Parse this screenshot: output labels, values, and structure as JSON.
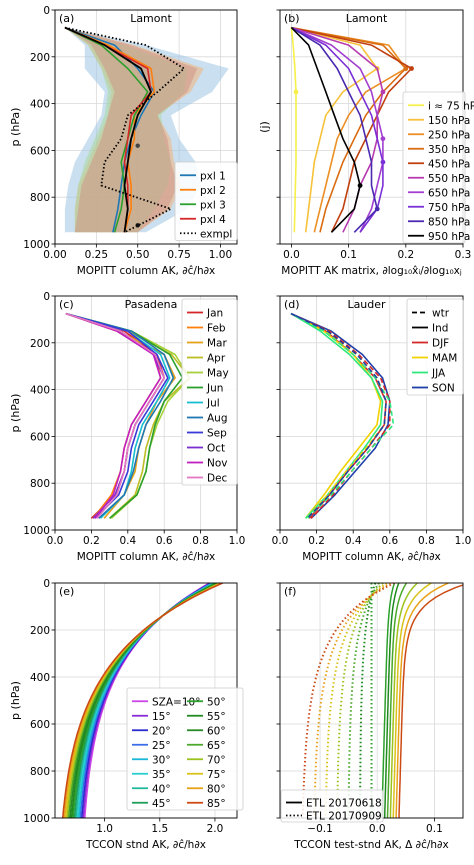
{
  "chart_data": [
    {
      "panel_label": "(a)",
      "location": "Lamont",
      "type": "line",
      "xlabel": "MOPITT column AK, ∂ĉ/h∂x",
      "ylabel": "p (hPa)",
      "xlim": [
        0,
        1.1
      ],
      "ylim": [
        1000,
        0
      ],
      "xticks": [
        "0.00",
        "0.25",
        "0.50",
        "0.75",
        "1.00"
      ],
      "xtick_values": [
        0,
        0.25,
        0.5,
        0.75,
        1.0
      ],
      "yticks": [
        "0",
        "200",
        "400",
        "600",
        "800",
        "1000"
      ],
      "ytick_values": [
        0,
        200,
        400,
        600,
        800,
        1000
      ],
      "legend_position": "lower-right",
      "grid": true,
      "pressure": [
        75,
        150,
        250,
        350,
        450,
        550,
        650,
        750,
        850,
        950
      ],
      "bands": [
        {
          "color": "#9ec6e4",
          "min": [
            0.06,
            0.18,
            0.18,
            0.3,
            0.28,
            0.2,
            0.12,
            0.08,
            0.06,
            0.06
          ],
          "max": [
            0.06,
            0.55,
            1.05,
            0.95,
            0.7,
            0.75,
            0.85,
            0.88,
            0.8,
            0.55
          ]
        },
        {
          "color": "#f2b37c",
          "min": [
            0.06,
            0.2,
            0.28,
            0.34,
            0.32,
            0.26,
            0.2,
            0.14,
            0.12,
            0.12
          ],
          "max": [
            0.06,
            0.48,
            0.9,
            0.82,
            0.62,
            0.7,
            0.72,
            0.76,
            0.7,
            0.5
          ]
        },
        {
          "color": "#a9d7a1",
          "min": [
            0.06,
            0.2,
            0.28,
            0.32,
            0.3,
            0.24,
            0.18,
            0.14,
            0.12,
            0.12
          ],
          "max": [
            0.06,
            0.42,
            0.8,
            0.78,
            0.64,
            0.66,
            0.7,
            0.68,
            0.6,
            0.5
          ]
        },
        {
          "color": "#cf9484",
          "min": [
            0.06,
            0.22,
            0.3,
            0.36,
            0.32,
            0.28,
            0.22,
            0.16,
            0.14,
            0.12
          ],
          "max": [
            0.06,
            0.46,
            0.86,
            0.8,
            0.62,
            0.68,
            0.7,
            0.74,
            0.68,
            0.5
          ]
        }
      ],
      "series": [
        {
          "name": "pxl 1",
          "color": "#1f77b4",
          "dash": "solid",
          "values": [
            0.06,
            0.36,
            0.5,
            0.6,
            0.52,
            0.46,
            0.42,
            0.4,
            0.38,
            0.35
          ]
        },
        {
          "name": "pxl 2",
          "color": "#ff7f0e",
          "dash": "solid",
          "values": [
            0.06,
            0.32,
            0.58,
            0.6,
            0.48,
            0.48,
            0.44,
            0.46,
            0.46,
            0.42
          ]
        },
        {
          "name": "pxl 3",
          "color": "#2ca02c",
          "dash": "solid",
          "values": [
            0.06,
            0.28,
            0.44,
            0.56,
            0.48,
            0.44,
            0.4,
            0.42,
            0.4,
            0.36
          ]
        },
        {
          "name": "pxl 4",
          "color": "#d62728",
          "dash": "solid",
          "values": [
            0.06,
            0.3,
            0.56,
            0.58,
            0.46,
            0.44,
            0.42,
            0.44,
            0.44,
            0.42
          ]
        },
        {
          "name": "exmpl",
          "color": "#000000",
          "dash": "dot",
          "values": [
            0.06,
            0.55,
            0.78,
            0.62,
            0.44,
            0.4,
            0.3,
            0.28,
            0.7,
            0.42
          ]
        }
      ],
      "special": [
        {
          "type": "dashdot",
          "color": "#000000",
          "values": [
            0.06,
            0.3,
            0.52,
            0.58,
            0.5,
            0.46,
            0.44,
            0.42,
            0.44,
            0.42
          ]
        }
      ],
      "markers": [
        {
          "x": 0.5,
          "p": 580,
          "color": "#444"
        },
        {
          "x": 0.5,
          "p": 920,
          "color": "#111"
        }
      ]
    },
    {
      "panel_label": "(b)",
      "location": "Lamont",
      "type": "line",
      "xlabel": "MOPITT AK matrix, ∂log₁₀x̂ᵢ/∂log₁₀xⱼ",
      "ylabel": "(j)",
      "xlim": [
        -0.02,
        0.3
      ],
      "ylim": [
        1000,
        0
      ],
      "xticks": [
        "0.0",
        "0.1",
        "0.2",
        "0.3"
      ],
      "xtick_values": [
        0,
        0.1,
        0.2,
        0.3
      ],
      "yticks": [],
      "legend_position": "right",
      "grid": true,
      "pressure": [
        75,
        150,
        250,
        350,
        450,
        550,
        650,
        750,
        850,
        950
      ],
      "series": [
        {
          "name": "i ≈ 75 hPa",
          "color": "#f7f04a",
          "values": [
            0.0,
            0.003,
            0.006,
            0.008,
            0.008,
            0.008,
            0.008,
            0.007,
            0.006,
            0.005
          ]
        },
        {
          "name": "150 hPa",
          "color": "#f7c23a",
          "values": [
            0.0,
            0.12,
            0.15,
            0.09,
            0.06,
            0.05,
            0.04,
            0.035,
            0.03,
            0.025
          ]
        },
        {
          "name": "250 hPa",
          "color": "#ec8f25",
          "values": [
            0.0,
            0.17,
            0.2,
            0.13,
            0.1,
            0.08,
            0.07,
            0.06,
            0.05,
            0.04
          ]
        },
        {
          "name": "350 hPa",
          "color": "#d96b10",
          "values": [
            0.0,
            0.16,
            0.2,
            0.16,
            0.13,
            0.11,
            0.09,
            0.075,
            0.06,
            0.05
          ]
        },
        {
          "name": "450 hPa",
          "color": "#c0400f",
          "values": [
            0.0,
            0.14,
            0.21,
            0.17,
            0.15,
            0.13,
            0.11,
            0.1,
            0.09,
            0.07
          ]
        },
        {
          "name": "550 hPa",
          "color": "#b63bb0",
          "values": [
            0.0,
            0.1,
            0.15,
            0.16,
            0.15,
            0.15,
            0.14,
            0.12,
            0.11,
            0.09
          ]
        },
        {
          "name": "650 hPa",
          "color": "#a23fd0",
          "values": [
            0.0,
            0.07,
            0.12,
            0.14,
            0.15,
            0.16,
            0.16,
            0.15,
            0.14,
            0.12
          ]
        },
        {
          "name": "750 hPa",
          "color": "#7a2fd6",
          "values": [
            0.0,
            0.06,
            0.1,
            0.12,
            0.14,
            0.15,
            0.16,
            0.16,
            0.15,
            0.12
          ]
        },
        {
          "name": "850 hPa",
          "color": "#4a2ab0",
          "values": [
            0.0,
            0.05,
            0.08,
            0.1,
            0.12,
            0.13,
            0.14,
            0.14,
            0.15,
            0.11
          ]
        },
        {
          "name": "950 hPa",
          "color": "#000000",
          "values": [
            0.0,
            0.03,
            0.045,
            0.06,
            0.075,
            0.09,
            0.11,
            0.12,
            0.11,
            0.07
          ]
        }
      ]
    },
    {
      "panel_label": "(c)",
      "location": "Pasadena",
      "type": "line",
      "xlabel": "MOPITT column AK, ∂ĉ/h∂x",
      "ylabel": "p (hPa)",
      "xlim": [
        0,
        1.0
      ],
      "ylim": [
        1000,
        0
      ],
      "xticks": [
        "0.0",
        "0.2",
        "0.4",
        "0.6",
        "0.8",
        "1.0"
      ],
      "xtick_values": [
        0,
        0.2,
        0.4,
        0.6,
        0.8,
        1.0
      ],
      "yticks": [
        "0",
        "200",
        "400",
        "600",
        "800",
        "1000"
      ],
      "ytick_values": [
        0,
        200,
        400,
        600,
        800,
        1000
      ],
      "legend_position": "right",
      "grid": true,
      "pressure": [
        75,
        150,
        250,
        350,
        450,
        550,
        650,
        750,
        850,
        950
      ],
      "series": [
        {
          "name": "Jan",
          "color": "#d62728",
          "values": [
            0.06,
            0.38,
            0.56,
            0.6,
            0.52,
            0.44,
            0.4,
            0.38,
            0.33,
            0.2
          ]
        },
        {
          "name": "Feb",
          "color": "#ff7f0e",
          "values": [
            0.06,
            0.34,
            0.55,
            0.58,
            0.5,
            0.42,
            0.38,
            0.36,
            0.31,
            0.21
          ]
        },
        {
          "name": "Mar",
          "color": "#e3a21a",
          "values": [
            0.06,
            0.35,
            0.6,
            0.66,
            0.56,
            0.5,
            0.46,
            0.44,
            0.38,
            0.27
          ]
        },
        {
          "name": "Apr",
          "color": "#bcbd22",
          "values": [
            0.06,
            0.4,
            0.64,
            0.74,
            0.6,
            0.54,
            0.5,
            0.48,
            0.44,
            0.3
          ]
        },
        {
          "name": "May",
          "color": "#a6d13a",
          "values": [
            0.06,
            0.42,
            0.66,
            0.74,
            0.62,
            0.56,
            0.52,
            0.5,
            0.45,
            0.31
          ]
        },
        {
          "name": "Jun",
          "color": "#2ca02c",
          "values": [
            0.06,
            0.42,
            0.63,
            0.7,
            0.6,
            0.55,
            0.52,
            0.5,
            0.45,
            0.3
          ]
        },
        {
          "name": "Jul",
          "color": "#17becf",
          "values": [
            0.06,
            0.4,
            0.58,
            0.63,
            0.56,
            0.48,
            0.44,
            0.42,
            0.38,
            0.25
          ]
        },
        {
          "name": "Aug",
          "color": "#1f77b4",
          "values": [
            0.06,
            0.42,
            0.6,
            0.65,
            0.58,
            0.5,
            0.46,
            0.43,
            0.38,
            0.24
          ]
        },
        {
          "name": "Sep",
          "color": "#3a3ad6",
          "values": [
            0.06,
            0.4,
            0.56,
            0.62,
            0.54,
            0.46,
            0.42,
            0.4,
            0.35,
            0.22
          ]
        },
        {
          "name": "Oct",
          "color": "#7b2fd0",
          "values": [
            0.06,
            0.36,
            0.54,
            0.6,
            0.52,
            0.44,
            0.4,
            0.38,
            0.33,
            0.21
          ]
        },
        {
          "name": "Nov",
          "color": "#c020c0",
          "values": [
            0.06,
            0.34,
            0.54,
            0.58,
            0.5,
            0.42,
            0.38,
            0.36,
            0.32,
            0.22
          ]
        },
        {
          "name": "Dec",
          "color": "#e377c2",
          "values": [
            0.06,
            0.36,
            0.55,
            0.6,
            0.52,
            0.44,
            0.4,
            0.38,
            0.34,
            0.23
          ]
        }
      ]
    },
    {
      "panel_label": "(d)",
      "location": "Lauder",
      "type": "line",
      "xlabel": "MOPITT column AK, ∂ĉ/h∂x",
      "ylabel": "",
      "xlim": [
        0,
        1.0
      ],
      "ylim": [
        1000,
        0
      ],
      "xticks": [
        "0.0",
        "0.2",
        "0.4",
        "0.6",
        "0.8",
        "1.0"
      ],
      "xtick_values": [
        0,
        0.2,
        0.4,
        0.6,
        0.8,
        1.0
      ],
      "yticks": [],
      "legend_position": "top-right",
      "grid": true,
      "pressure": [
        75,
        150,
        250,
        350,
        450,
        550,
        650,
        750,
        850,
        950
      ],
      "legend": [
        {
          "name": "wtr",
          "color": "#000000",
          "dash": "dash"
        },
        {
          "name": "Ind",
          "color": "#000000",
          "dash": "solid"
        },
        {
          "name": "DJF",
          "color": "#d62728",
          "dash": "solid"
        },
        {
          "name": "MAM",
          "color": "#f2d200",
          "dash": "solid"
        },
        {
          "name": "JJA",
          "color": "#2ee87e",
          "dash": "solid"
        },
        {
          "name": "SON",
          "color": "#1f3fa8",
          "dash": "solid"
        }
      ],
      "series": [
        {
          "name": "DJF",
          "color": "#d62728",
          "dash": "solid",
          "values": [
            0.06,
            0.25,
            0.4,
            0.52,
            0.58,
            0.57,
            0.48,
            0.37,
            0.27,
            0.16
          ]
        },
        {
          "name": "MAM",
          "color": "#f2d200",
          "dash": "solid",
          "values": [
            0.06,
            0.24,
            0.4,
            0.5,
            0.55,
            0.53,
            0.43,
            0.33,
            0.24,
            0.14
          ]
        },
        {
          "name": "JJA",
          "color": "#2ee87e",
          "dash": "solid",
          "values": [
            0.06,
            0.22,
            0.38,
            0.5,
            0.56,
            0.55,
            0.46,
            0.36,
            0.26,
            0.14
          ]
        },
        {
          "name": "SON",
          "color": "#1f3fa8",
          "dash": "solid",
          "values": [
            0.06,
            0.28,
            0.45,
            0.56,
            0.6,
            0.59,
            0.52,
            0.41,
            0.3,
            0.17
          ]
        },
        {
          "name": "DJF",
          "color": "#d62728",
          "dash": "dash",
          "values": [
            0.06,
            0.27,
            0.43,
            0.55,
            0.6,
            0.6,
            0.5,
            0.39,
            0.29,
            0.17
          ]
        },
        {
          "name": "MAM",
          "color": "#f2d200",
          "dash": "dash",
          "values": [
            0.06,
            0.25,
            0.42,
            0.53,
            0.58,
            0.57,
            0.47,
            0.36,
            0.26,
            0.15
          ]
        },
        {
          "name": "JJA",
          "color": "#2ee87e",
          "dash": "dash",
          "values": [
            0.06,
            0.24,
            0.4,
            0.52,
            0.6,
            0.62,
            0.5,
            0.39,
            0.28,
            0.15
          ]
        },
        {
          "name": "SON",
          "color": "#1f3fa8",
          "dash": "dash",
          "values": [
            0.06,
            0.26,
            0.42,
            0.53,
            0.58,
            0.57,
            0.48,
            0.37,
            0.27,
            0.15
          ]
        }
      ]
    },
    {
      "panel_label": "(e)",
      "location": "",
      "type": "line",
      "xlabel": "TCCON stnd AK, ∂ĉ/h∂x",
      "ylabel": "p (hPa)",
      "xlim": [
        0.55,
        2.2
      ],
      "ylim": [
        1000,
        0
      ],
      "xticks": [
        "1.0",
        "1.5",
        "2.0"
      ],
      "xtick_values": [
        1.0,
        1.5,
        2.0
      ],
      "yticks": [
        "0",
        "200",
        "400",
        "600",
        "800",
        "1000"
      ],
      "ytick_values": [
        0,
        200,
        400,
        600,
        800,
        1000
      ],
      "legend_position": "lower-right",
      "legend_columns": 2,
      "grid": true,
      "series": [
        {
          "name": "SZA=10°",
          "color": "#cc44e6"
        },
        {
          "name": "15°",
          "color": "#8a2bd8"
        },
        {
          "name": "20°",
          "color": "#2a2acf"
        },
        {
          "name": "25°",
          "color": "#3a6ee8"
        },
        {
          "name": "30°",
          "color": "#1ab8d8"
        },
        {
          "name": "35°",
          "color": "#2aced0"
        },
        {
          "name": "40°",
          "color": "#22b89a"
        },
        {
          "name": "45°",
          "color": "#1f9e5a"
        },
        {
          "name": "50°",
          "color": "#2ca02c"
        },
        {
          "name": "55°",
          "color": "#1f8a1f"
        },
        {
          "name": "60°",
          "color": "#258a25"
        },
        {
          "name": "65°",
          "color": "#4aa82a"
        },
        {
          "name": "70°",
          "color": "#9cc21e"
        },
        {
          "name": "75°",
          "color": "#d9c318"
        },
        {
          "name": "80°",
          "color": "#e8a21a"
        },
        {
          "name": "85°",
          "color": "#cc4a14"
        }
      ]
    },
    {
      "panel_label": "(f)",
      "location": "",
      "type": "line",
      "xlabel": "TCCON test-stnd AK, Δ ∂ĉ/h∂x",
      "ylabel": "",
      "xlim": [
        -0.17,
        0.15
      ],
      "ylim": [
        1000,
        0
      ],
      "xticks": [
        "−0.1",
        "0.0",
        "0.1"
      ],
      "xtick_values": [
        -0.1,
        0.0,
        0.1
      ],
      "yticks": [],
      "legend_position": "lower-left",
      "grid": true,
      "legend": [
        {
          "name": "ETL 20170618",
          "color": "#000000",
          "dash": "solid"
        },
        {
          "name": "ETL 20170909",
          "color": "#000000",
          "dash": "dot"
        }
      ]
    }
  ]
}
